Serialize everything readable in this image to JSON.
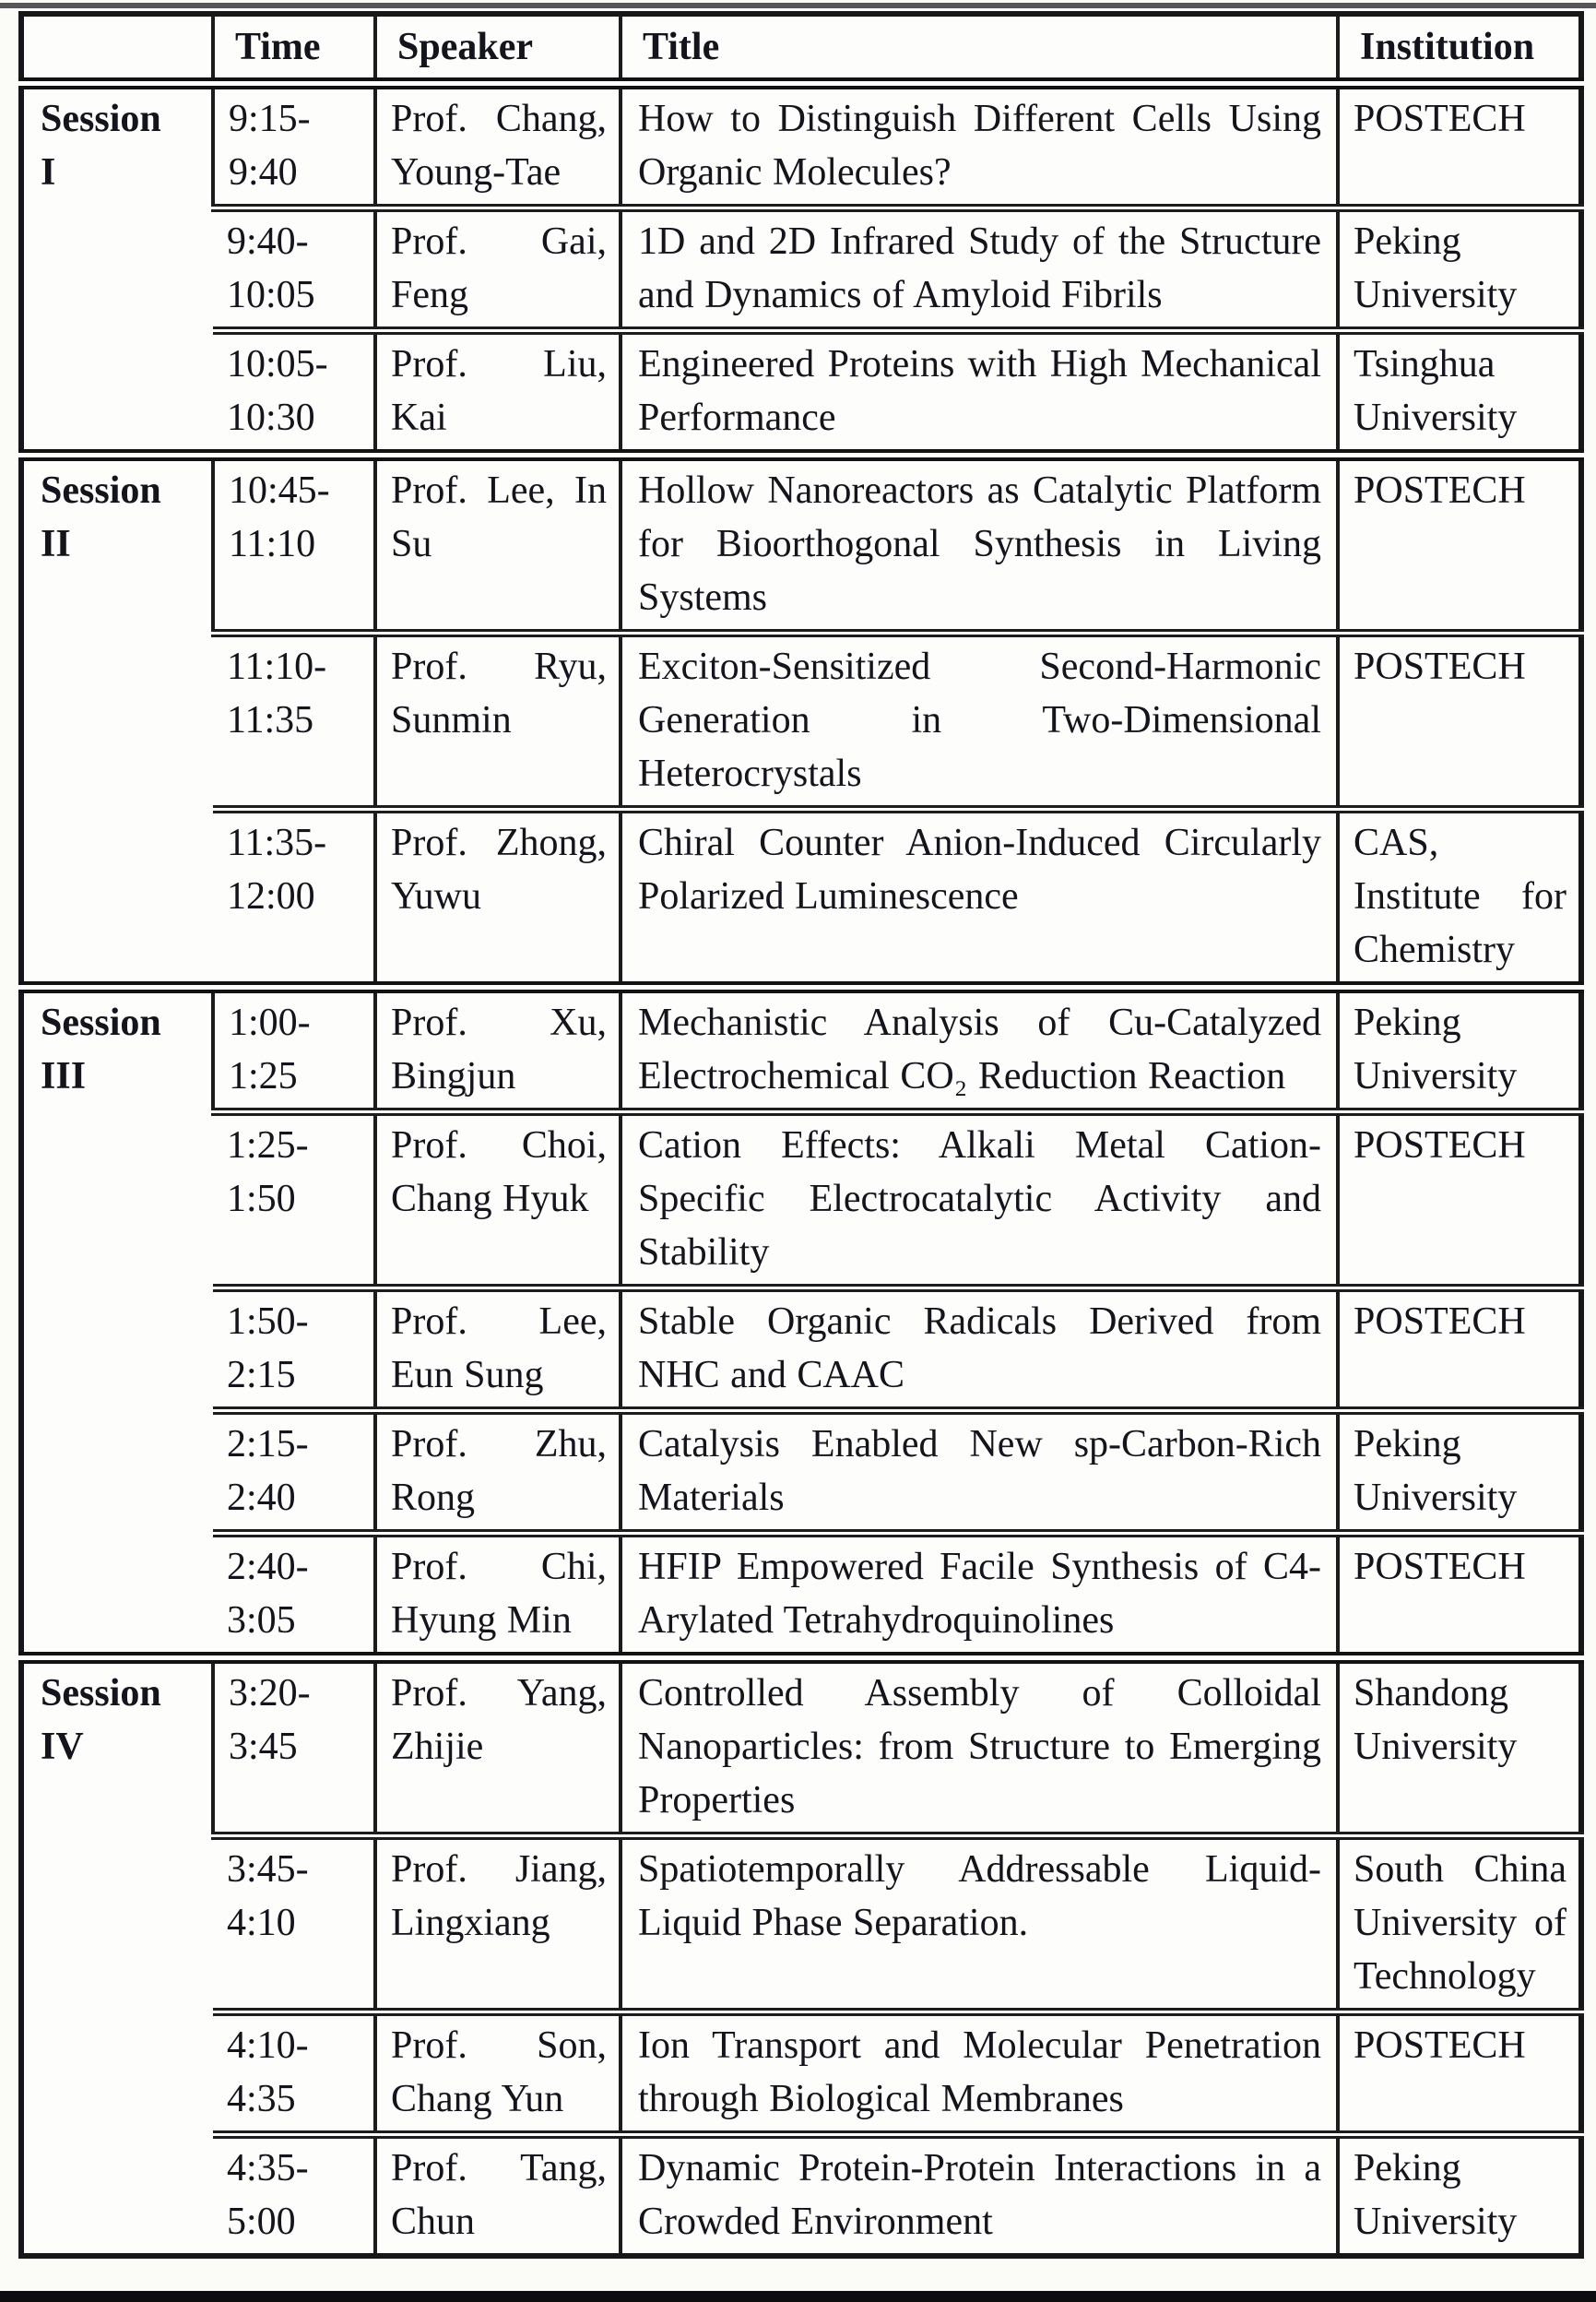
{
  "page": {
    "colors": {
      "background": "#fbfbf8",
      "text": "#14141d",
      "border": "#1c1c1f",
      "top_rule": "#55555a",
      "bottom_rule": "#0d0d0f"
    }
  },
  "table": {
    "headers": {
      "session": "",
      "time": "Time",
      "speaker": "Speaker",
      "title": "Title",
      "institution": "Institution"
    },
    "sessions": [
      {
        "label": "Session\nI",
        "rows": [
          {
            "time": "9:15-\n9:40",
            "speaker": "Prof. Chang, Young-Tae",
            "title": "How to Distinguish Different Cells Using Organic Molecules?",
            "institution": "POSTECH"
          },
          {
            "time": "9:40-\n10:05",
            "speaker": "Prof. Gai, Feng",
            "title": "1D and 2D Infrared Study of the Structure and Dynamics of Amyloid Fibrils",
            "institution": "Peking University"
          },
          {
            "time": "10:05-\n10:30",
            "speaker": "Prof. Liu, Kai",
            "title": "Engineered Proteins with High Mechanical Performance",
            "institution": "Tsinghua University"
          }
        ]
      },
      {
        "label": "Session\nII",
        "rows": [
          {
            "time": "10:45-\n11:10",
            "speaker": "Prof. Lee, In Su",
            "title": "Hollow Nanoreactors as Catalytic Platform for Bioorthogonal Synthesis in Living Systems",
            "institution": "POSTECH"
          },
          {
            "time": "11:10-\n11:35",
            "speaker": "Prof. Ryu, Sunmin",
            "title": "Exciton-Sensitized Second-Harmonic Generation in Two-Dimensional Heterocrystals",
            "institution": "POSTECH"
          },
          {
            "time": "11:35-\n12:00",
            "speaker": "Prof. Zhong, Yuwu",
            "title": "Chiral Counter Anion-Induced Circularly Polarized Luminescence",
            "institution": "CAS, Institute for Chemistry"
          }
        ]
      },
      {
        "label": "Session\nIII",
        "rows": [
          {
            "time": "1:00-\n1:25",
            "speaker": "Prof. Xu, Bingjun",
            "title": "Mechanistic Analysis of Cu-Catalyzed Electrochemical CO₂ Reduction Reaction",
            "institution": "Peking University"
          },
          {
            "time": "1:25-\n1:50",
            "speaker": "Prof. Choi, Chang Hyuk",
            "title": "Cation Effects: Alkali Metal Cation-Specific Electrocatalytic Activity and Stability",
            "institution": "POSTECH"
          },
          {
            "time": "1:50-\n2:15",
            "speaker": "Prof. Lee, Eun Sung",
            "title": "Stable Organic Radicals Derived from NHC and CAAC",
            "institution": "POSTECH"
          },
          {
            "time": "2:15-\n2:40",
            "speaker": "Prof. Zhu, Rong",
            "title": "Catalysis Enabled New sp-Carbon-Rich Materials",
            "institution": "Peking University"
          },
          {
            "time": "2:40-\n3:05",
            "speaker": "Prof. Chi, Hyung Min",
            "title": "HFIP Empowered Facile Synthesis of C4-Arylated Tetrahydroquinolines",
            "institution": "POSTECH"
          }
        ]
      },
      {
        "label": "Session\nIV",
        "rows": [
          {
            "time": "3:20-\n3:45",
            "speaker": "Prof. Yang, Zhijie",
            "title": "Controlled Assembly of Colloidal Nanoparticles: from Structure to Emerging Properties",
            "institution": "Shandong University"
          },
          {
            "time": "3:45-\n4:10",
            "speaker": "Prof. Jiang, Lingxiang",
            "title": "Spatiotemporally Addressable Liquid-Liquid Phase Separation.",
            "institution": "South China University of Technology"
          },
          {
            "time": "4:10-\n4:35",
            "speaker": "Prof. Son, Chang Yun",
            "title": "Ion Transport and Molecular Penetration through Biological Membranes",
            "institution": "POSTECH"
          },
          {
            "time": "4:35-\n5:00",
            "speaker": "Prof. Tang, Chun",
            "title": "Dynamic Protein-Protein Interactions in a Crowded Environment",
            "institution": "Peking University"
          }
        ]
      }
    ]
  }
}
